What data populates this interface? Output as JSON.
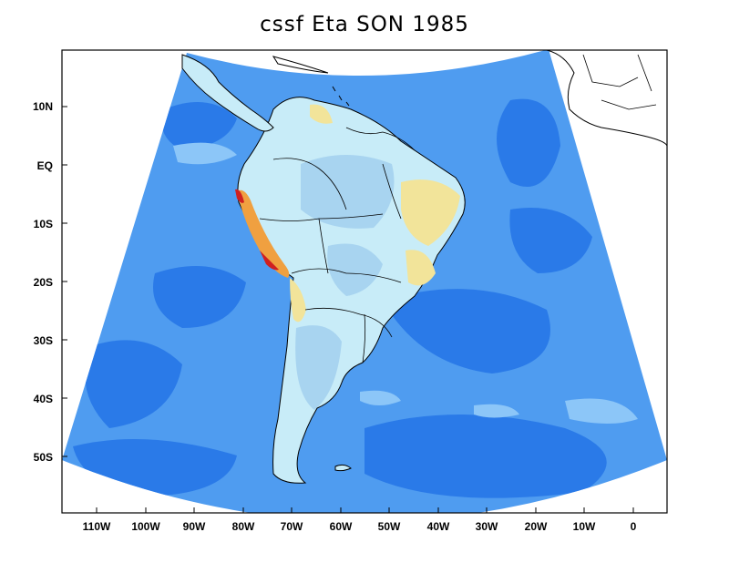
{
  "title": "cssf Eta SON 1985",
  "colors": {
    "ocean_deep": "#2a7ae8",
    "ocean_mid": "#4f9cf0",
    "ocean_light": "#8cc6f8",
    "land_pale": "#c8ecf8",
    "land_blue": "#a8d4f0",
    "yellow": "#f2e49a",
    "orange": "#f0a040",
    "red": "#d02020",
    "frame": "#000000",
    "coast": "#000000"
  },
  "y_axis": {
    "ticks": [
      "10N",
      "EQ",
      "10S",
      "20S",
      "30S",
      "40S",
      "50S"
    ]
  },
  "x_axis": {
    "ticks": [
      "110W",
      "100W",
      "90W",
      "80W",
      "70W",
      "60W",
      "50W",
      "40W",
      "30W",
      "20W",
      "10W",
      "0"
    ]
  }
}
